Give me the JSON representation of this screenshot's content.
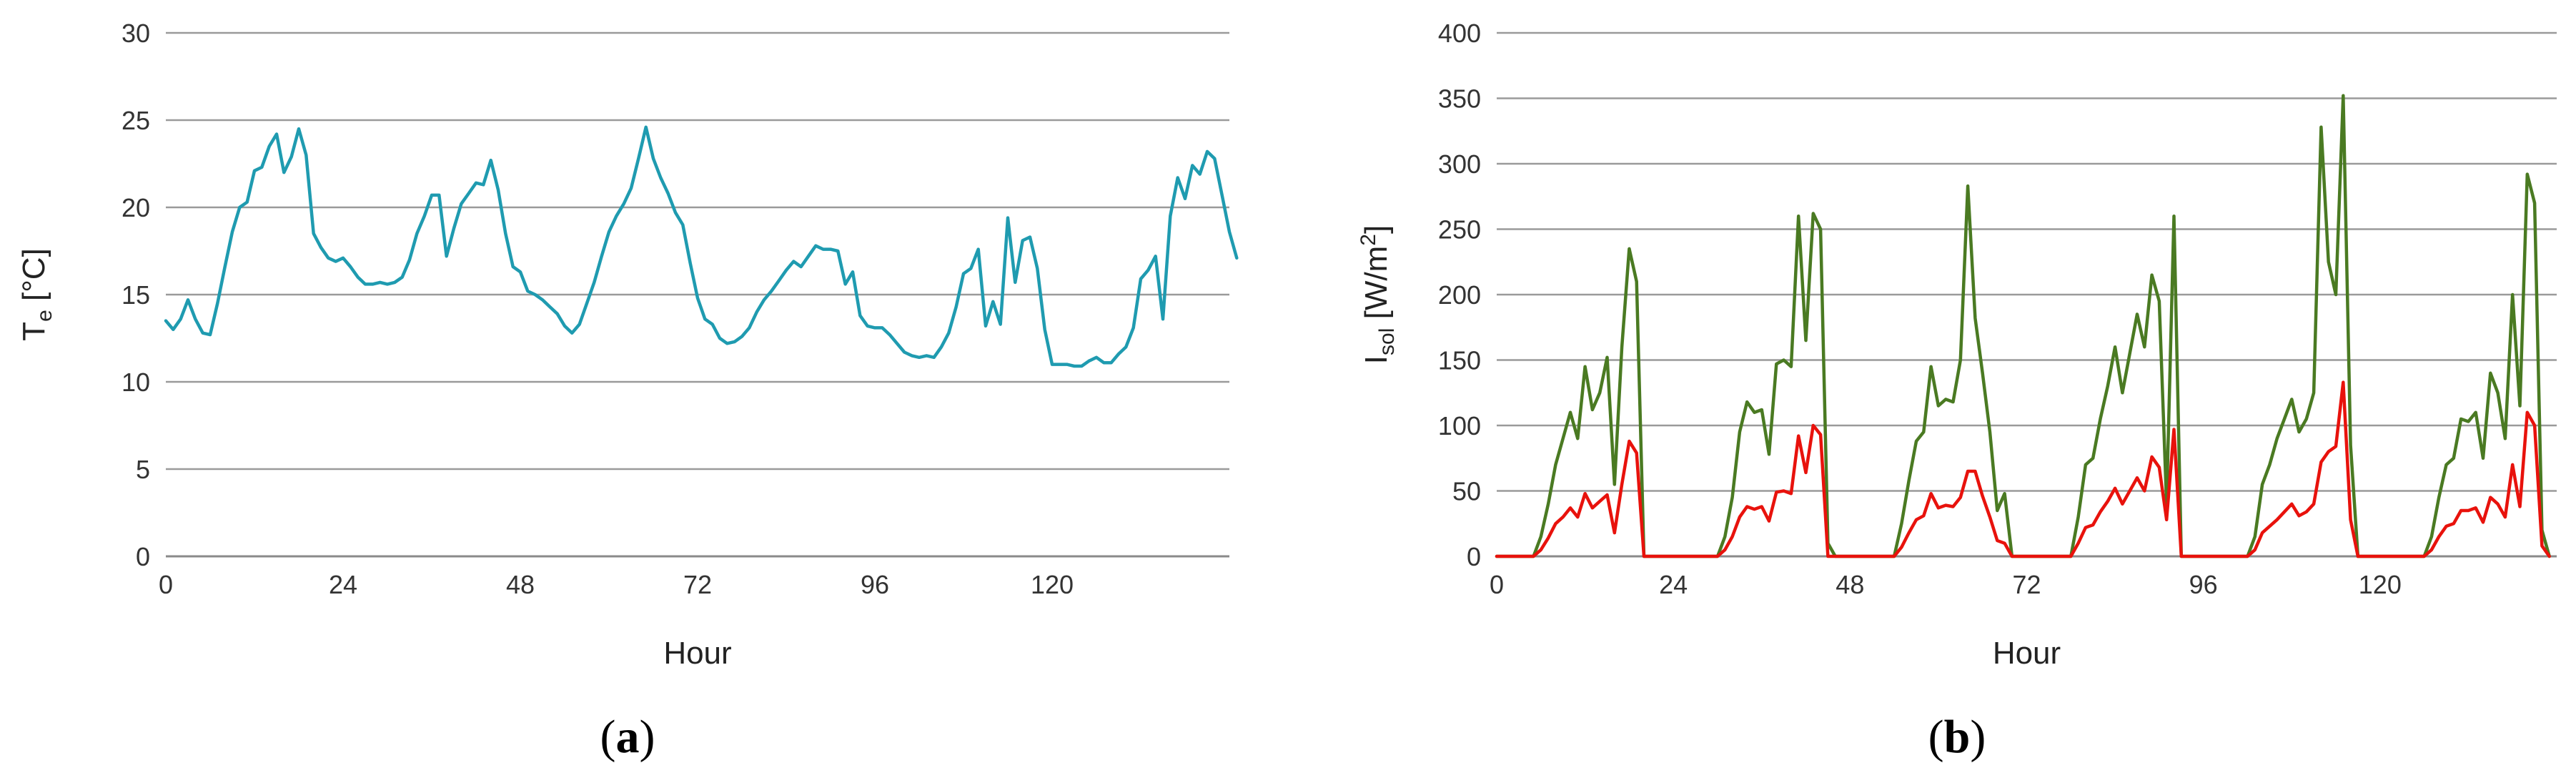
{
  "chart_data": [
    {
      "id": "a",
      "type": "line",
      "panel_label": "a",
      "xlabel": "Hour",
      "ylabel": "T",
      "ylabel_sub": "e",
      "ylabel_unit": " [°C]",
      "xlim": [
        0,
        144
      ],
      "ylim": [
        0,
        30
      ],
      "xticks": [
        0,
        24,
        48,
        72,
        96,
        120
      ],
      "yticks": [
        0,
        5,
        10,
        15,
        20,
        25,
        30
      ],
      "grid": true,
      "series": [
        {
          "color": "#1f9bb0",
          "values": [
            13.5,
            13.0,
            13.6,
            14.7,
            13.6,
            12.8,
            12.7,
            14.5,
            16.6,
            18.6,
            20.0,
            20.3,
            22.1,
            22.3,
            23.5,
            24.2,
            22.0,
            22.9,
            24.5,
            23.0,
            18.5,
            17.7,
            17.1,
            16.9,
            17.1,
            16.6,
            16.0,
            15.6,
            15.6,
            15.7,
            15.6,
            15.7,
            16.0,
            17.0,
            18.5,
            19.5,
            20.7,
            20.7,
            17.2,
            18.8,
            20.2,
            20.8,
            21.4,
            21.3,
            22.7,
            21.0,
            18.5,
            16.6,
            16.3,
            15.2,
            15.0,
            14.7,
            14.3,
            13.9,
            13.2,
            12.8,
            13.3,
            14.5,
            15.7,
            17.2,
            18.6,
            19.5,
            20.2,
            21.1,
            22.8,
            24.6,
            22.8,
            21.7,
            20.8,
            19.7,
            19.0,
            16.8,
            14.8,
            13.6,
            13.3,
            12.5,
            12.2,
            12.3,
            12.6,
            13.1,
            14.0,
            14.7,
            15.2,
            15.8,
            16.4,
            16.9,
            16.6,
            17.2,
            17.8,
            17.6,
            17.6,
            17.5,
            15.6,
            16.3,
            13.8,
            13.2,
            13.1,
            13.1,
            12.7,
            12.2,
            11.7,
            11.5,
            11.4,
            11.5,
            11.4,
            12.0,
            12.8,
            14.3,
            16.2,
            16.5,
            17.6,
            13.2,
            14.6,
            13.3,
            19.4,
            15.7,
            18.1,
            18.3,
            16.5,
            13.0,
            11.0,
            11.0,
            11.0,
            10.9,
            10.9,
            11.2,
            11.4,
            11.1,
            11.1,
            11.6,
            12.0,
            13.1,
            15.9,
            16.4,
            17.2,
            13.6,
            19.5,
            21.7,
            20.5,
            22.4,
            21.9,
            23.2,
            22.8,
            20.7,
            18.6,
            17.1
          ]
        }
      ]
    },
    {
      "id": "b",
      "type": "line",
      "panel_label": "b",
      "xlabel": "Hour",
      "ylabel": "I",
      "ylabel_sub": "sol",
      "ylabel_unit": " [W/m",
      "ylabel_sup": "2",
      "ylabel_end": "]",
      "xlim": [
        0,
        144
      ],
      "ylim": [
        0,
        400
      ],
      "xticks": [
        0,
        24,
        48,
        72,
        96,
        120
      ],
      "yticks": [
        0,
        50,
        100,
        150,
        200,
        250,
        300,
        350,
        400
      ],
      "grid": true,
      "series": [
        {
          "color": "#4a7a22",
          "points": [
            [
              0,
              0
            ],
            [
              5,
              0
            ],
            [
              6,
              15
            ],
            [
              7,
              40
            ],
            [
              8,
              70
            ],
            [
              9,
              90
            ],
            [
              10,
              110
            ],
            [
              11,
              90
            ],
            [
              12,
              145
            ],
            [
              13,
              112
            ],
            [
              14,
              125
            ],
            [
              15,
              152
            ],
            [
              16,
              55
            ],
            [
              17,
              160
            ],
            [
              18,
              235
            ],
            [
              19,
              210
            ],
            [
              20,
              0
            ],
            [
              30,
              0
            ],
            [
              31,
              15
            ],
            [
              32,
              45
            ],
            [
              33,
              95
            ],
            [
              34,
              118
            ],
            [
              35,
              110
            ],
            [
              36,
              112
            ],
            [
              37,
              78
            ],
            [
              38,
              147
            ],
            [
              39,
              150
            ],
            [
              40,
              145
            ],
            [
              41,
              260
            ],
            [
              42,
              165
            ],
            [
              43,
              262
            ],
            [
              44,
              250
            ],
            [
              45,
              10
            ],
            [
              46,
              0
            ],
            [
              54,
              0
            ],
            [
              55,
              25
            ],
            [
              56,
              58
            ],
            [
              57,
              88
            ],
            [
              58,
              95
            ],
            [
              59,
              145
            ],
            [
              60,
              115
            ],
            [
              61,
              120
            ],
            [
              62,
              118
            ],
            [
              63,
              150
            ],
            [
              64,
              283
            ],
            [
              65,
              182
            ],
            [
              66,
              140
            ],
            [
              67,
              95
            ],
            [
              68,
              35
            ],
            [
              69,
              48
            ],
            [
              70,
              0
            ],
            [
              78,
              0
            ],
            [
              79,
              30
            ],
            [
              80,
              70
            ],
            [
              81,
              75
            ],
            [
              82,
              105
            ],
            [
              83,
              130
            ],
            [
              84,
              160
            ],
            [
              85,
              125
            ],
            [
              86,
              155
            ],
            [
              87,
              185
            ],
            [
              88,
              160
            ],
            [
              89,
              215
            ],
            [
              90,
              195
            ],
            [
              91,
              40
            ],
            [
              92,
              260
            ],
            [
              93,
              0
            ],
            [
              102,
              0
            ],
            [
              103,
              15
            ],
            [
              104,
              55
            ],
            [
              105,
              70
            ],
            [
              106,
              90
            ],
            [
              107,
              105
            ],
            [
              108,
              120
            ],
            [
              109,
              95
            ],
            [
              110,
              105
            ],
            [
              111,
              125
            ],
            [
              112,
              328
            ],
            [
              113,
              225
            ],
            [
              114,
              200
            ],
            [
              115,
              352
            ],
            [
              116,
              85
            ],
            [
              117,
              0
            ],
            [
              126,
              0
            ],
            [
              127,
              15
            ],
            [
              128,
              45
            ],
            [
              129,
              70
            ],
            [
              130,
              75
            ],
            [
              131,
              105
            ],
            [
              132,
              103
            ],
            [
              133,
              110
            ],
            [
              134,
              75
            ],
            [
              135,
              140
            ],
            [
              136,
              125
            ],
            [
              137,
              90
            ],
            [
              138,
              200
            ],
            [
              139,
              115
            ],
            [
              140,
              292
            ],
            [
              141,
              270
            ],
            [
              142,
              20
            ],
            [
              143,
              0
            ]
          ]
        },
        {
          "color": "#e8120c",
          "points": [
            [
              0,
              0
            ],
            [
              5,
              0
            ],
            [
              6,
              5
            ],
            [
              7,
              14
            ],
            [
              8,
              25
            ],
            [
              9,
              30
            ],
            [
              10,
              37
            ],
            [
              11,
              30
            ],
            [
              12,
              48
            ],
            [
              13,
              37
            ],
            [
              14,
              42
            ],
            [
              15,
              47
            ],
            [
              16,
              18
            ],
            [
              17,
              55
            ],
            [
              18,
              88
            ],
            [
              19,
              79
            ],
            [
              20,
              0
            ],
            [
              30,
              0
            ],
            [
              31,
              5
            ],
            [
              32,
              15
            ],
            [
              33,
              30
            ],
            [
              34,
              38
            ],
            [
              35,
              36
            ],
            [
              36,
              38
            ],
            [
              37,
              27
            ],
            [
              38,
              49
            ],
            [
              39,
              50
            ],
            [
              40,
              48
            ],
            [
              41,
              92
            ],
            [
              42,
              64
            ],
            [
              43,
              100
            ],
            [
              44,
              93
            ],
            [
              45,
              0
            ],
            [
              54,
              0
            ],
            [
              55,
              7
            ],
            [
              56,
              18
            ],
            [
              57,
              28
            ],
            [
              58,
              31
            ],
            [
              59,
              48
            ],
            [
              60,
              37
            ],
            [
              61,
              39
            ],
            [
              62,
              38
            ],
            [
              63,
              45
            ],
            [
              64,
              65
            ],
            [
              65,
              65
            ],
            [
              66,
              46
            ],
            [
              67,
              30
            ],
            [
              68,
              12
            ],
            [
              69,
              10
            ],
            [
              70,
              0
            ],
            [
              78,
              0
            ],
            [
              79,
              10
            ],
            [
              80,
              22
            ],
            [
              81,
              24
            ],
            [
              82,
              34
            ],
            [
              83,
              42
            ],
            [
              84,
              52
            ],
            [
              85,
              40
            ],
            [
              86,
              50
            ],
            [
              87,
              60
            ],
            [
              88,
              50
            ],
            [
              89,
              76
            ],
            [
              90,
              68
            ],
            [
              91,
              28
            ],
            [
              92,
              97
            ],
            [
              93,
              0
            ],
            [
              102,
              0
            ],
            [
              103,
              5
            ],
            [
              104,
              18
            ],
            [
              105,
              23
            ],
            [
              106,
              28
            ],
            [
              107,
              34
            ],
            [
              108,
              40
            ],
            [
              109,
              31
            ],
            [
              110,
              34
            ],
            [
              111,
              40
            ],
            [
              112,
              72
            ],
            [
              113,
              80
            ],
            [
              114,
              84
            ],
            [
              115,
              133
            ],
            [
              116,
              28
            ],
            [
              117,
              0
            ],
            [
              126,
              0
            ],
            [
              127,
              5
            ],
            [
              128,
              15
            ],
            [
              129,
              23
            ],
            [
              130,
              25
            ],
            [
              131,
              35
            ],
            [
              132,
              35
            ],
            [
              133,
              37
            ],
            [
              134,
              26
            ],
            [
              135,
              45
            ],
            [
              136,
              40
            ],
            [
              137,
              30
            ],
            [
              138,
              70
            ],
            [
              139,
              38
            ],
            [
              140,
              110
            ],
            [
              141,
              100
            ],
            [
              142,
              8
            ],
            [
              143,
              0
            ]
          ]
        }
      ]
    }
  ]
}
